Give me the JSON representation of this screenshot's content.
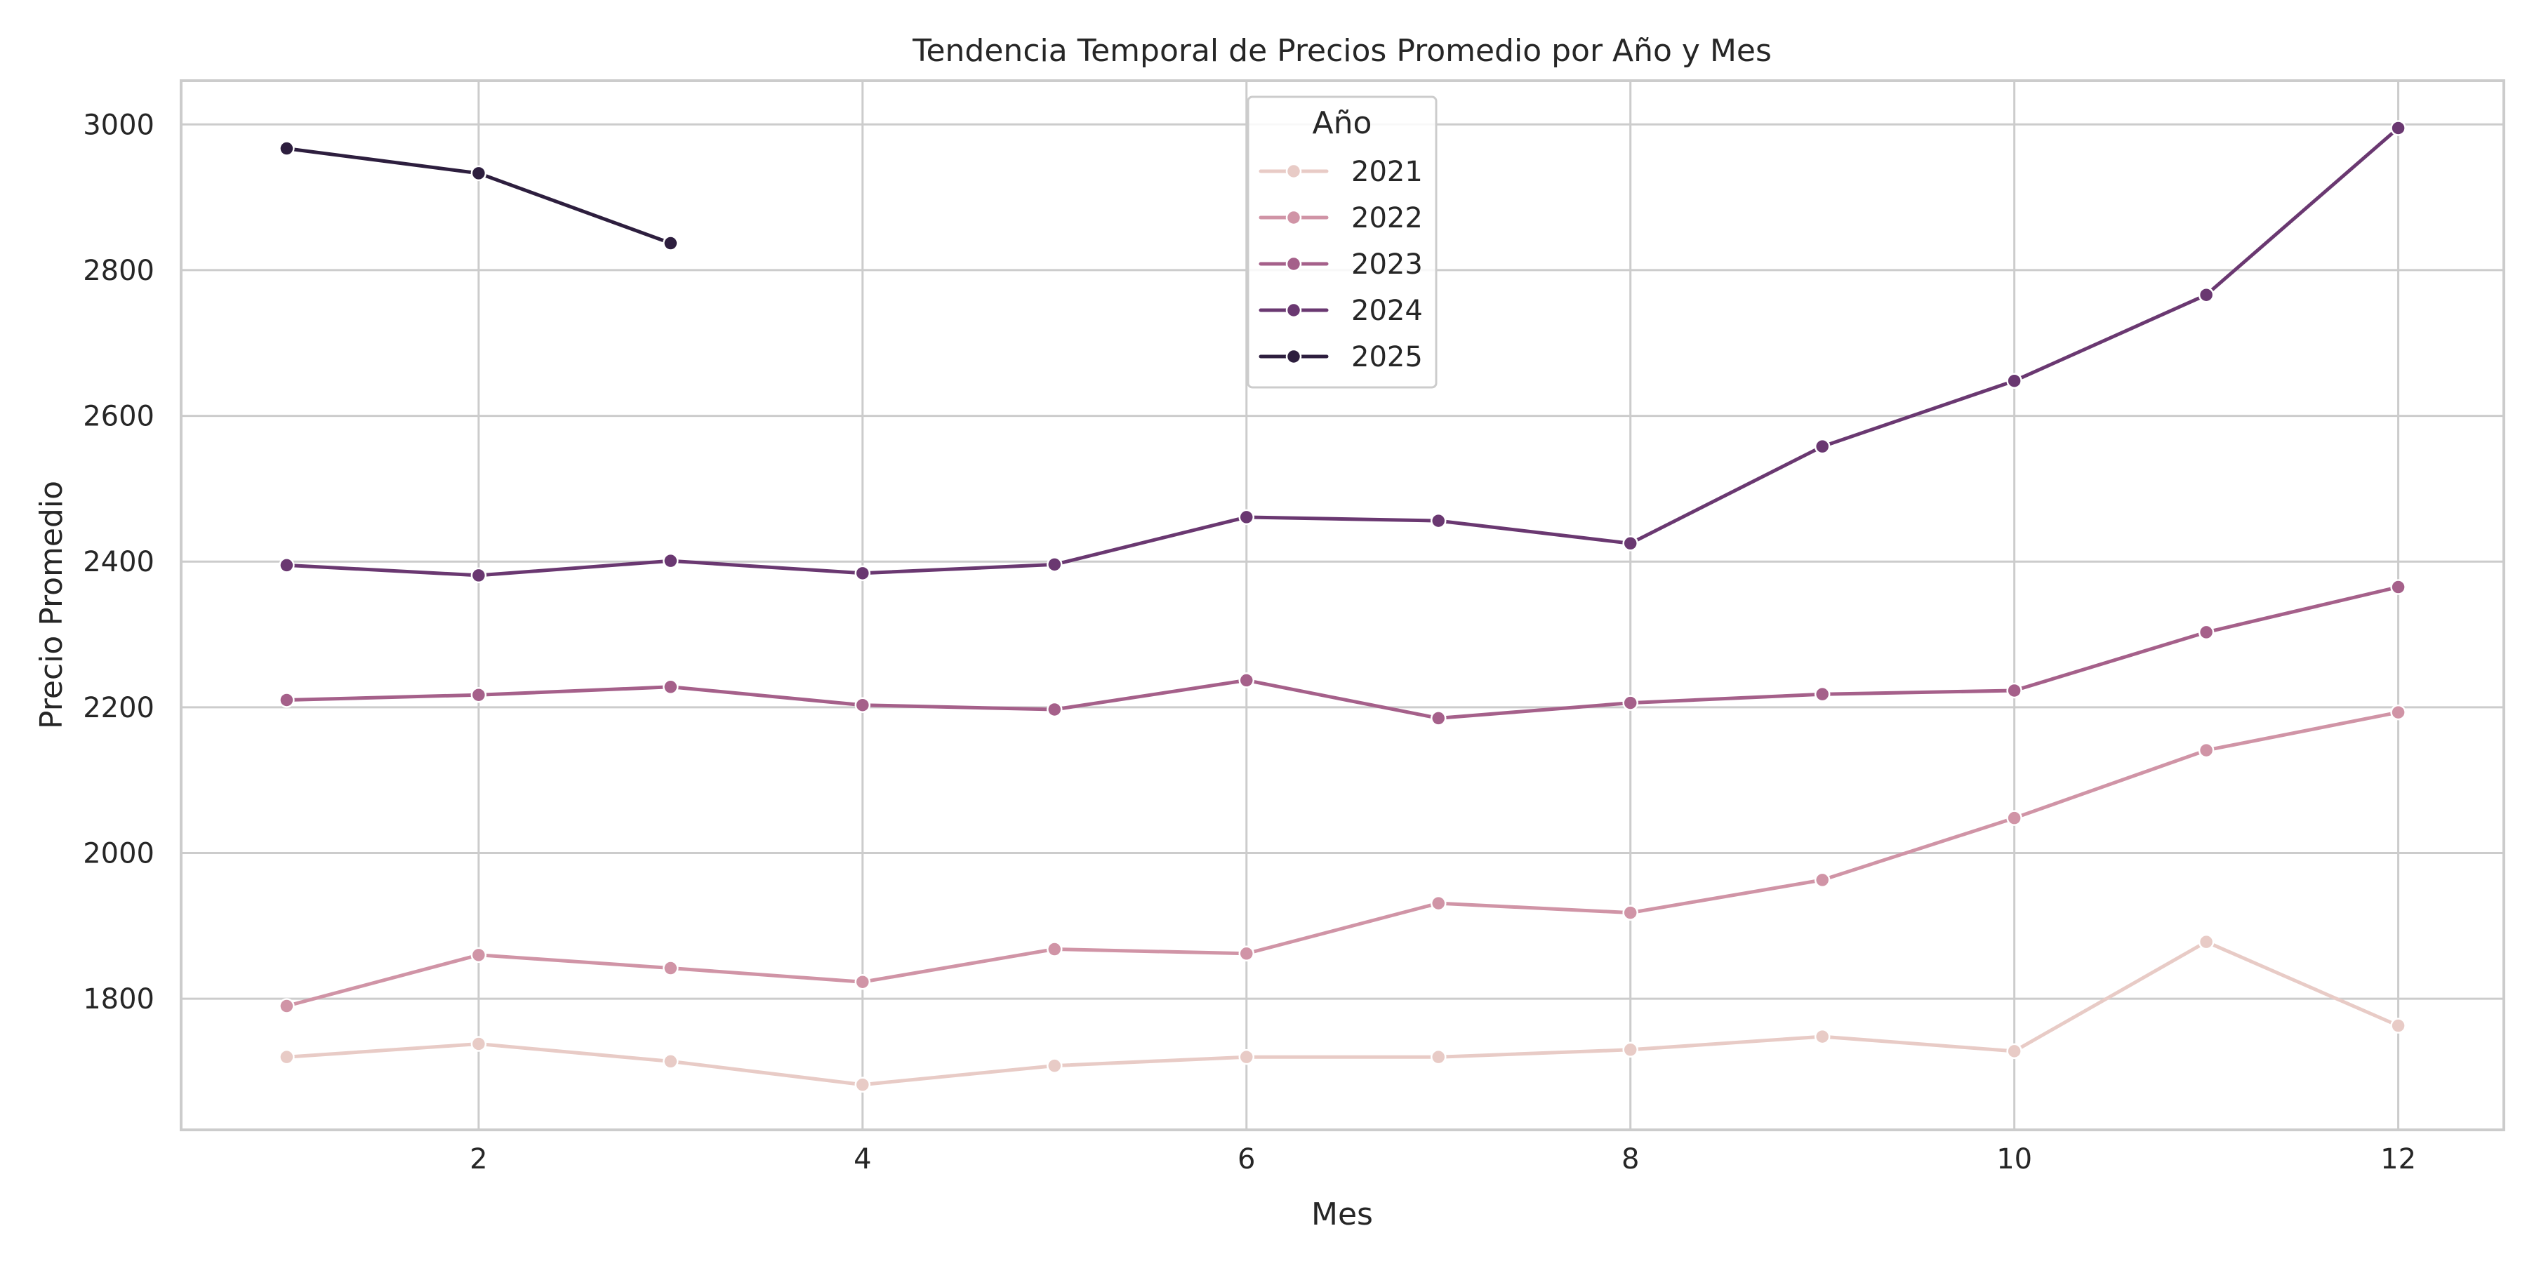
{
  "chart_data": {
    "type": "line",
    "title": "Tendencia Temporal de Precios Promedio por Año y Mes",
    "xlabel": "Mes",
    "ylabel": "Precio Promedio",
    "xlim": [
      0.45,
      12.55
    ],
    "ylim": [
      1620,
      3060
    ],
    "xticks": [
      2,
      4,
      6,
      8,
      10,
      12
    ],
    "yticks": [
      1800,
      2000,
      2200,
      2400,
      2600,
      2800,
      3000
    ],
    "grid": true,
    "legend": {
      "title": "Año",
      "placement": "top-center"
    },
    "series": [
      {
        "name": "2021",
        "color": "#e8cbc6",
        "x": [
          1,
          2,
          3,
          4,
          5,
          6,
          7,
          8,
          9,
          10,
          11,
          12
        ],
        "y": [
          1720,
          1738,
          1714,
          1682,
          1708,
          1720,
          1720,
          1730,
          1748,
          1728,
          1878,
          1763
        ]
      },
      {
        "name": "2022",
        "color": "#d094a6",
        "x": [
          1,
          2,
          3,
          4,
          5,
          6,
          7,
          8,
          9,
          10,
          11,
          12
        ],
        "y": [
          1790,
          1860,
          1842,
          1823,
          1868,
          1862,
          1931,
          1918,
          1963,
          2048,
          2141,
          2193
        ]
      },
      {
        "name": "2023",
        "color": "#a5608a",
        "x": [
          1,
          2,
          3,
          4,
          5,
          6,
          7,
          8,
          9,
          10,
          11,
          12
        ],
        "y": [
          2210,
          2217,
          2228,
          2203,
          2197,
          2237,
          2185,
          2206,
          2218,
          2223,
          2303,
          2365
        ]
      },
      {
        "name": "2024",
        "color": "#6a3871",
        "x": [
          1,
          2,
          3,
          4,
          5,
          6,
          7,
          8,
          9,
          10,
          11,
          12
        ],
        "y": [
          2395,
          2381,
          2401,
          2384,
          2396,
          2461,
          2456,
          2425,
          2558,
          2648,
          2766,
          2995
        ]
      },
      {
        "name": "2025",
        "color": "#2d1e3e",
        "x": [
          1,
          2,
          3
        ],
        "y": [
          2967,
          2933,
          2837
        ]
      }
    ]
  }
}
